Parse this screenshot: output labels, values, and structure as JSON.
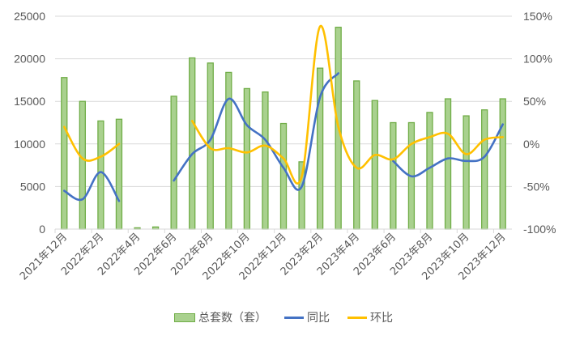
{
  "chart_data": {
    "type": "bar",
    "title": "",
    "xlabel": "",
    "ylabel": "",
    "ylabel_right": "",
    "ylim": [
      0,
      25000
    ],
    "ylim_right": [
      -1.0,
      1.5
    ],
    "y_ticks": [
      "0",
      "5000",
      "10000",
      "15000",
      "20000",
      "25000"
    ],
    "y_right_ticks": [
      "-100%",
      "-50%",
      "0%",
      "50%",
      "100%",
      "150%"
    ],
    "x_tick_labels": [
      "2021年12月",
      "2022年2月",
      "2022年4月",
      "2022年6月",
      "2022年8月",
      "2022年10月",
      "2022年12月",
      "2023年2月",
      "2023年4月",
      "2023年6月",
      "2023年8月",
      "2023年10月",
      "2023年12月"
    ],
    "grid": true,
    "legend_position": "bottom",
    "categories": [
      "2021年12月",
      "2022年1月",
      "2022年2月",
      "2022年3月",
      "2022年4月",
      "2022年5月",
      "2022年6月",
      "2022年7月",
      "2022年8月",
      "2022年9月",
      "2022年10月",
      "2022年11月",
      "2022年12月",
      "2023年1月",
      "2023年2月",
      "2023年3月",
      "2023年4月",
      "2023年5月",
      "2023年6月",
      "2023年7月",
      "2023年8月",
      "2023年9月",
      "2023年10月",
      "2023年11月",
      "2023年12月"
    ],
    "series": [
      {
        "name": "总套数（套）",
        "type": "bar",
        "axis": "left",
        "color": "#a9d18e",
        "border_color": "#70ad47",
        "values": [
          17800,
          15000,
          12700,
          12900,
          150,
          250,
          15600,
          20100,
          19500,
          18400,
          16500,
          16100,
          12400,
          7900,
          18900,
          23700,
          17400,
          15100,
          12500,
          12500,
          13700,
          15300,
          13300,
          14000,
          15300
        ]
      },
      {
        "name": "同比",
        "type": "line",
        "axis": "right",
        "color": "#4472c4",
        "values": [
          -0.55,
          -0.65,
          -0.33,
          -0.67,
          null,
          null,
          -0.43,
          -0.12,
          0.05,
          0.53,
          0.22,
          0.05,
          -0.28,
          -0.5,
          0.55,
          0.83,
          null,
          null,
          -0.2,
          -0.38,
          -0.28,
          -0.17,
          -0.2,
          -0.15,
          0.23
        ]
      },
      {
        "name": "环比",
        "type": "line",
        "axis": "right",
        "color": "#ffc000",
        "values": [
          0.2,
          -0.17,
          -0.15,
          0.0,
          null,
          null,
          null,
          0.27,
          -0.05,
          -0.05,
          -0.1,
          -0.02,
          -0.17,
          -0.38,
          1.38,
          0.2,
          -0.28,
          -0.13,
          -0.18,
          0.0,
          0.08,
          0.12,
          -0.12,
          0.05,
          0.08
        ]
      }
    ]
  },
  "legend": {
    "bar_label": "总套数（套）",
    "line1_label": "同比",
    "line2_label": "环比"
  }
}
